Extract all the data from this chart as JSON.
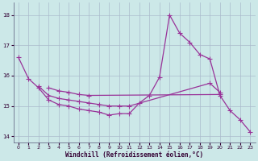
{
  "xlabel": "Windchill (Refroidissement éolien,°C)",
  "xlim": [
    -0.5,
    23.5
  ],
  "ylim": [
    13.8,
    18.4
  ],
  "yticks": [
    14,
    15,
    16,
    17,
    18
  ],
  "xticks": [
    0,
    1,
    2,
    3,
    4,
    5,
    6,
    7,
    8,
    9,
    10,
    11,
    12,
    13,
    14,
    15,
    16,
    17,
    18,
    19,
    20,
    21,
    22,
    23
  ],
  "bg_color": "#cce8e8",
  "grid_color": "#aabbcc",
  "line_color": "#993399",
  "line_width": 0.9,
  "marker": "+",
  "marker_size": 4,
  "series1": {
    "x": [
      0,
      1,
      2,
      3,
      4,
      5,
      6,
      7,
      8,
      9,
      10,
      11,
      12,
      13,
      14,
      15,
      16,
      17,
      18,
      19,
      20,
      21,
      22,
      23
    ],
    "y": [
      16.6,
      15.9,
      15.6,
      15.2,
      15.05,
      15.0,
      14.9,
      14.85,
      14.8,
      14.7,
      14.75,
      14.75,
      15.1,
      15.35,
      15.95,
      18.0,
      17.4,
      17.1,
      16.7,
      16.55,
      15.35,
      14.85,
      14.55,
      14.15
    ]
  },
  "series2": {
    "x": [
      2,
      3,
      4,
      5,
      6,
      7,
      8,
      9,
      10,
      11,
      19,
      20
    ],
    "y": [
      15.65,
      15.35,
      15.25,
      15.2,
      15.15,
      15.1,
      15.05,
      15.0,
      15.0,
      15.0,
      15.75,
      15.45
    ]
  },
  "series3": {
    "x": [
      3,
      4,
      5,
      6,
      7,
      20
    ],
    "y": [
      15.6,
      15.5,
      15.45,
      15.38,
      15.35,
      15.38
    ]
  }
}
